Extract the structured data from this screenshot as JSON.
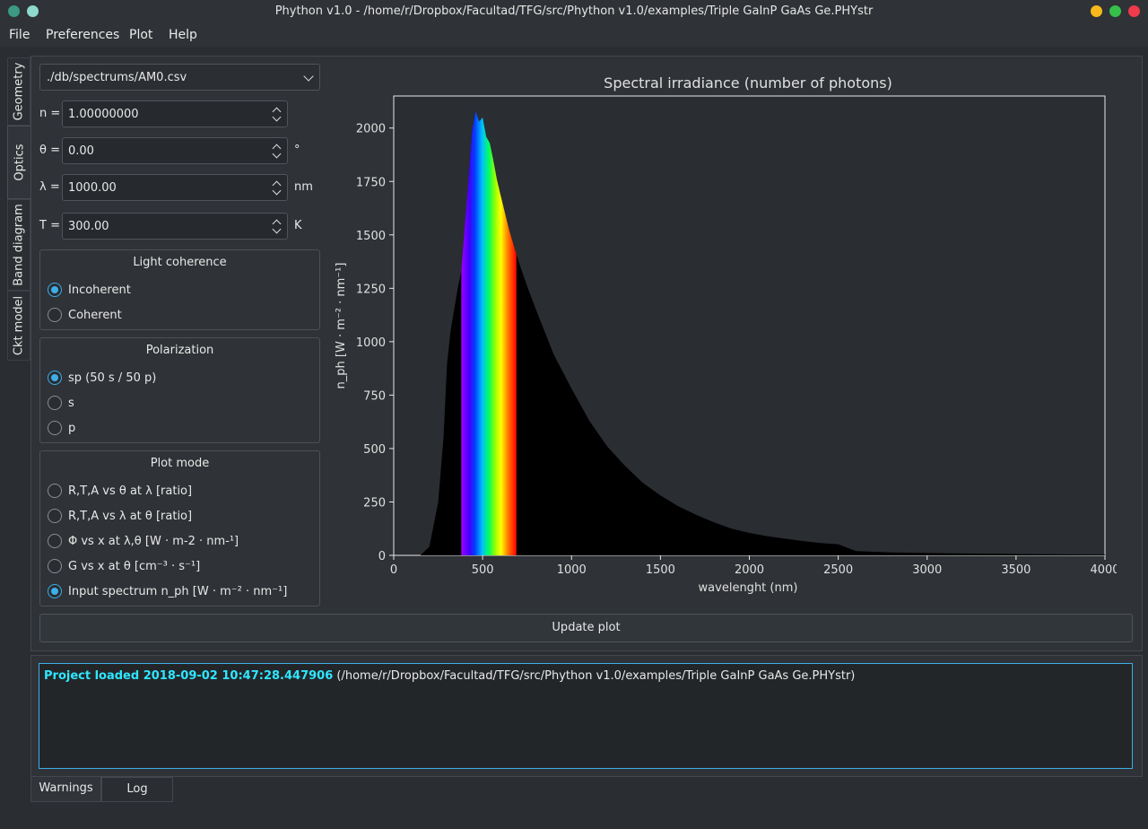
{
  "window": {
    "title": "Phython v1.0 - /home/r/Dropbox/Facultad/TFG/src/Phython v1.0/examples/Triple GaInP GaAs Ge.PHYstr"
  },
  "menu": [
    "File",
    "Preferences",
    "Plot",
    "Help"
  ],
  "side_tabs": [
    "Geometry",
    "Optics",
    "Band diagram",
    "Ckt model"
  ],
  "optics": {
    "spectrum_file": "./db/spectrums/AM0.csv",
    "n_label": "n =",
    "n_value": "1.00000000",
    "theta_label": "θ =",
    "theta_value": "0.00",
    "theta_unit": "°",
    "lambda_label": "λ =",
    "lambda_value": "1000.00",
    "lambda_unit": "nm",
    "T_label": "T =",
    "T_value": "300.00",
    "T_unit": "K"
  },
  "coherence": {
    "title": "Light coherence",
    "options": [
      "Incoherent",
      "Coherent"
    ],
    "selected": 0
  },
  "polarization": {
    "title": "Polarization",
    "options": [
      "sp (50 s / 50 p)",
      "s",
      "p"
    ],
    "selected": 0
  },
  "plot_mode": {
    "title": "Plot mode",
    "options": [
      "R,T,A vs θ at λ [ratio]",
      "R,T,A vs λ at θ [ratio]",
      "Φ vs x at  λ,θ [W · m-2 · nm-¹]",
      "G vs x at  θ [cm⁻³ · s⁻¹]",
      "Input spectrum n_ph [W · m⁻² · nm⁻¹]"
    ],
    "selected": 4
  },
  "update_button": "Update plot",
  "log": {
    "highlight": "Project loaded 2018-09-02 10:47:28.447906",
    "rest": " (/home/r/Dropbox/Facultad/TFG/src/Phython v1.0/examples/Triple GaInP GaAs Ge.PHYstr)"
  },
  "bottom_tabs": [
    "Warnings",
    "Log"
  ],
  "chart_data": {
    "type": "area",
    "title": "Spectral irradiance (number of photons)",
    "xlabel": "wavelenght (nm)",
    "ylabel": "n_ph [W · m⁻² · nm⁻¹]",
    "xlim": [
      0,
      4000
    ],
    "ylim": [
      0,
      2150
    ],
    "xticks": [
      0,
      500,
      1000,
      1500,
      2000,
      2500,
      3000,
      3500,
      4000
    ],
    "yticks": [
      0,
      250,
      500,
      750,
      1000,
      1250,
      1500,
      1750,
      2000
    ],
    "grid": false,
    "visible_band_nm": [
      380,
      690
    ],
    "x": [
      150,
      200,
      250,
      280,
      300,
      320,
      340,
      360,
      380,
      400,
      420,
      440,
      460,
      480,
      500,
      520,
      540,
      560,
      580,
      600,
      650,
      700,
      750,
      800,
      900,
      1000,
      1100,
      1200,
      1300,
      1400,
      1500,
      1600,
      1700,
      1800,
      1900,
      2000,
      2100,
      2200,
      2300,
      2400,
      2500,
      2600,
      2800,
      3000,
      3200,
      3400,
      3600,
      3800,
      4000
    ],
    "y": [
      0,
      40,
      250,
      550,
      900,
      1050,
      1150,
      1250,
      1330,
      1550,
      1750,
      1980,
      2080,
      2030,
      2050,
      1960,
      1930,
      1850,
      1760,
      1690,
      1520,
      1380,
      1260,
      1150,
      940,
      780,
      630,
      510,
      420,
      340,
      280,
      230,
      190,
      155,
      125,
      105,
      90,
      78,
      67,
      58,
      52,
      20,
      14,
      11,
      9,
      7,
      5,
      4,
      3
    ]
  }
}
